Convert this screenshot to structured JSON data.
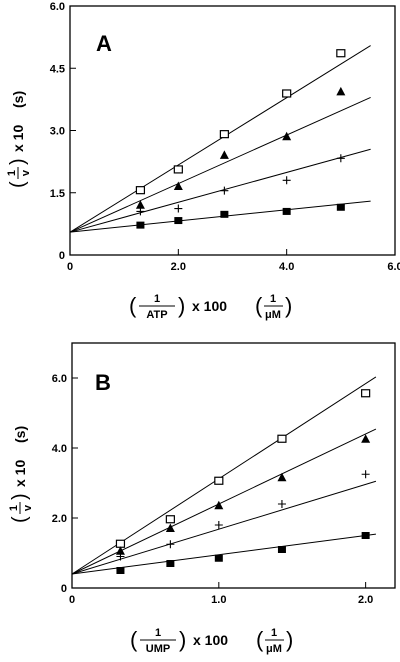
{
  "chart_data": [
    {
      "type": "scatter",
      "panel_label": "A",
      "title": "",
      "x_range": [
        0,
        6.0
      ],
      "y_range": [
        0,
        6.0
      ],
      "x_ticks": [
        0,
        2.0,
        4.0,
        6.0
      ],
      "x_tick_labels": [
        "0",
        "2.0",
        "4.0",
        "6.0"
      ],
      "y_ticks": [
        0,
        1.5,
        3.0,
        4.5,
        6.0
      ],
      "y_tick_labels": [
        "0",
        "1.5",
        "3.0",
        "4.5",
        "6.0"
      ],
      "ylabel": {
        "frac_num": "1",
        "frac_den": "v",
        "mult": "x 10",
        "unit": "(s)"
      },
      "xlabel": {
        "frac_num": "1",
        "frac_den": "ATP",
        "mult": "x 100",
        "unit_num": "1",
        "unit_den": "μM"
      },
      "line_x_end": 5.55,
      "series": [
        {
          "marker": "open-square",
          "x": [
            1.3,
            2.0,
            2.85,
            4.0,
            5.0
          ],
          "y": [
            1.55,
            2.05,
            2.9,
            3.88,
            4.85
          ],
          "fit": {
            "intercept": 0.55,
            "slope": 0.81
          }
        },
        {
          "marker": "filled-triangle",
          "x": [
            1.3,
            2.0,
            2.85,
            4.0,
            5.0
          ],
          "y": [
            1.2,
            1.65,
            2.4,
            2.85,
            3.93
          ],
          "fit": {
            "intercept": 0.55,
            "slope": 0.585
          }
        },
        {
          "marker": "plus",
          "x": [
            1.3,
            2.0,
            2.85,
            4.0,
            5.0
          ],
          "y": [
            1.05,
            1.12,
            1.55,
            1.8,
            2.33
          ],
          "fit": {
            "intercept": 0.55,
            "slope": 0.36
          }
        },
        {
          "marker": "filled-square",
          "x": [
            1.3,
            2.0,
            2.85,
            4.0,
            5.0
          ],
          "y": [
            0.72,
            0.83,
            0.98,
            1.05,
            1.15
          ],
          "fit": {
            "intercept": 0.55,
            "slope": 0.135
          }
        }
      ]
    },
    {
      "type": "scatter",
      "panel_label": "B",
      "title": "",
      "x_range": [
        0,
        2.2
      ],
      "y_range": [
        0,
        7.0
      ],
      "x_ticks": [
        0,
        1.0,
        2.0
      ],
      "x_tick_labels": [
        "0",
        "1.0",
        "2.0"
      ],
      "y_ticks": [
        0,
        2.0,
        4.0,
        6.0
      ],
      "y_tick_labels": [
        "0",
        "2.0",
        "4.0",
        "6.0"
      ],
      "ylabel": {
        "frac_num": "1",
        "frac_den": "v",
        "mult": "x 10",
        "unit": "(s)"
      },
      "xlabel": {
        "frac_num": "1",
        "frac_den": "UMP",
        "mult": "x 100",
        "unit_num": "1",
        "unit_den": "μM"
      },
      "line_x_end": 2.07,
      "series": [
        {
          "marker": "open-square",
          "x": [
            0.33,
            0.67,
            1.0,
            1.43,
            2.0
          ],
          "y": [
            1.25,
            1.95,
            3.05,
            4.25,
            5.55
          ],
          "fit": {
            "intercept": 0.4,
            "slope": 2.72
          }
        },
        {
          "marker": "filled-triangle",
          "x": [
            0.33,
            0.67,
            1.0,
            1.43,
            2.0
          ],
          "y": [
            1.05,
            1.7,
            2.35,
            3.15,
            4.25
          ],
          "fit": {
            "intercept": 0.4,
            "slope": 2.0
          }
        },
        {
          "marker": "plus",
          "x": [
            0.33,
            0.67,
            1.0,
            1.43,
            2.0
          ],
          "y": [
            0.9,
            1.25,
            1.8,
            2.4,
            3.25
          ],
          "fit": {
            "intercept": 0.4,
            "slope": 1.28
          }
        },
        {
          "marker": "filled-square",
          "x": [
            0.33,
            0.67,
            1.0,
            1.43,
            2.0
          ],
          "y": [
            0.5,
            0.7,
            0.85,
            1.1,
            1.5
          ],
          "fit": {
            "intercept": 0.4,
            "slope": 0.55
          }
        }
      ]
    }
  ]
}
